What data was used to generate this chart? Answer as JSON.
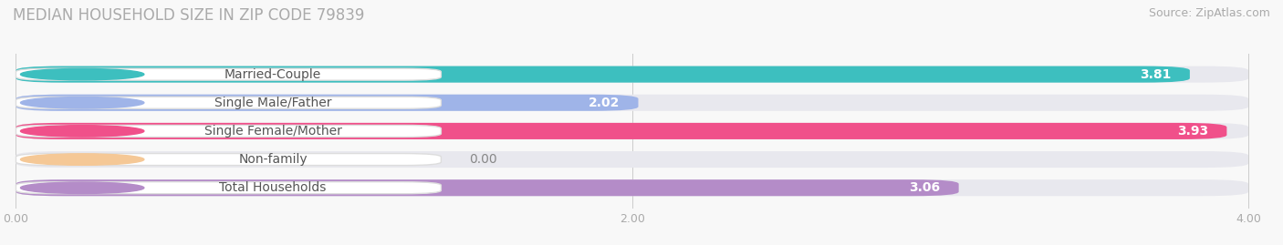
{
  "title": "MEDIAN HOUSEHOLD SIZE IN ZIP CODE 79839",
  "source": "Source: ZipAtlas.com",
  "categories": [
    "Married-Couple",
    "Single Male/Father",
    "Single Female/Mother",
    "Non-family",
    "Total Households"
  ],
  "values": [
    3.81,
    2.02,
    3.93,
    0.0,
    3.06
  ],
  "bar_colors": [
    "#3dbfbf",
    "#9fb4e8",
    "#f0508a",
    "#f5c896",
    "#b48cc8"
  ],
  "bg_color": "#f8f8f8",
  "bar_bg_color": "#e8e8ee",
  "xlim_max": 4.0,
  "xticks": [
    0.0,
    2.0,
    4.0
  ],
  "xtick_labels": [
    "0.00",
    "2.00",
    "4.00"
  ],
  "title_fontsize": 12,
  "source_fontsize": 9,
  "label_fontsize": 10,
  "value_fontsize": 10,
  "bar_height": 0.58
}
